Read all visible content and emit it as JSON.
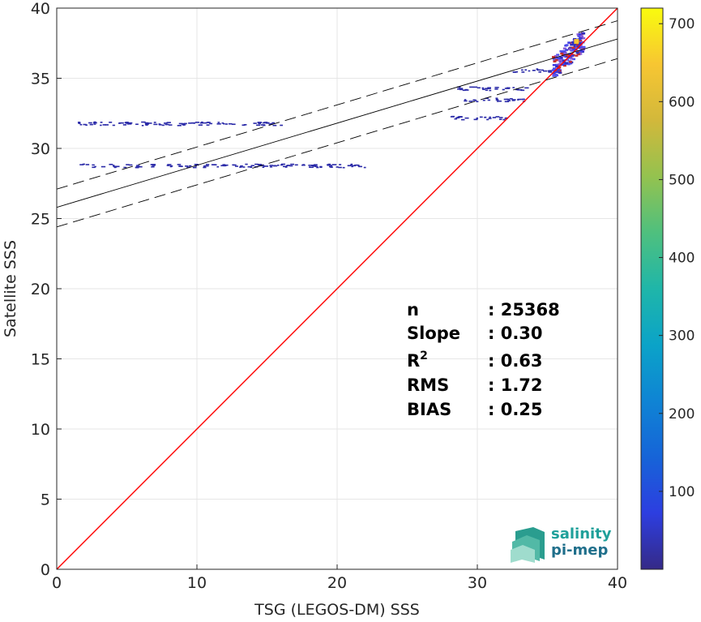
{
  "chart_data": {
    "type": "scatter",
    "xlabel": "TSG (LEGOS-DM) SSS",
    "ylabel": "Satellite SSS",
    "xlim": [
      0,
      40
    ],
    "ylim": [
      0,
      40
    ],
    "xticks": [
      0,
      10,
      20,
      30,
      40
    ],
    "yticks": [
      0,
      5,
      10,
      15,
      20,
      25,
      30,
      35,
      40
    ],
    "grid": true,
    "colorbar": {
      "range": [
        0,
        720
      ],
      "ticks": [
        100,
        200,
        300,
        400,
        500,
        600,
        700
      ],
      "colormap": "parula"
    },
    "reference_lines": [
      {
        "kind": "identity",
        "x": [
          0,
          40
        ],
        "y": [
          0,
          40
        ],
        "color": "#ff0000"
      },
      {
        "kind": "fit",
        "x": [
          0,
          40
        ],
        "y": [
          25.8,
          37.8
        ],
        "color": "#000000",
        "style": "solid"
      },
      {
        "kind": "fit-upper",
        "x": [
          0,
          40
        ],
        "y": [
          27.1,
          39.1
        ],
        "color": "#000000",
        "style": "dashed"
      },
      {
        "kind": "fit-lower",
        "x": [
          0,
          40
        ],
        "y": [
          24.4,
          36.4
        ],
        "color": "#000000",
        "style": "dashed"
      }
    ],
    "density_clusters": [
      {
        "x": [
          1.5,
          16.0
        ],
        "y": 31.8,
        "density": 40
      },
      {
        "x": [
          1.6,
          22.0
        ],
        "y": 28.8,
        "density": 30
      },
      {
        "x": [
          28.0,
          32.0
        ],
        "y": 32.2,
        "density": 40
      },
      {
        "x": [
          28.5,
          33.5
        ],
        "y": 34.3,
        "density": 60
      },
      {
        "x": [
          29.0,
          33.5
        ],
        "y": 33.5,
        "density": 40
      },
      {
        "x": [
          32.5,
          35.5
        ],
        "y": 35.6,
        "density": 80
      },
      {
        "x": [
          35.3,
          37.5
        ],
        "y": [
          35.8,
          37.8
        ],
        "density": 700
      }
    ],
    "stats": [
      {
        "label": "n",
        "sup": "",
        "value": ": 25368"
      },
      {
        "label": "Slope",
        "sup": "",
        "value": ": 0.30"
      },
      {
        "label": "R",
        "sup": "2",
        "value": ": 0.63"
      },
      {
        "label": "RMS",
        "sup": "",
        "value": ": 1.72"
      },
      {
        "label": "BIAS",
        "sup": "",
        "value": ": 0.25"
      }
    ]
  },
  "logo": {
    "line1": "salinity",
    "line2": "pi-mep"
  },
  "colors": {
    "identity": "#ff0000",
    "fit": "#000000",
    "grid": "#e6e6e6",
    "logo_text": "#1fa09a"
  }
}
